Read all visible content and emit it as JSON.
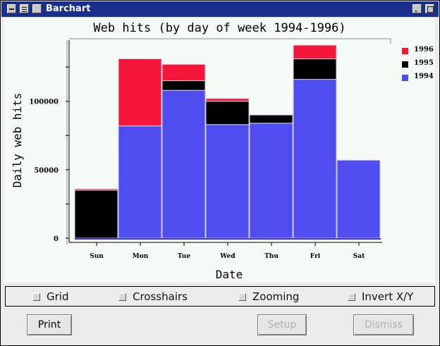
{
  "window": {
    "title": "Barchart"
  },
  "chart_data": {
    "type": "bar",
    "stacked": true,
    "title": "Web hits (by day of week 1994-1996)",
    "xlabel": "Date",
    "ylabel": "Daily web hits",
    "categories": [
      "Sun",
      "Mon",
      "Tue",
      "Wed",
      "Thu",
      "Fri",
      "Sat"
    ],
    "ylim": [
      0,
      140000
    ],
    "yticks": [
      "0",
      "50000",
      "100000"
    ],
    "ytick_values": [
      0,
      50000,
      100000
    ],
    "legend_position": "top-right",
    "series": [
      {
        "name": "1994",
        "color": "#4f4cf0",
        "values": [
          0,
          82000,
          108000,
          83000,
          84000,
          116000,
          57000
        ]
      },
      {
        "name": "1995",
        "color": "#000000",
        "values": [
          35000,
          0,
          7000,
          17000,
          6000,
          15000,
          0
        ]
      },
      {
        "name": "1996",
        "color": "#f5163a",
        "values": [
          1000,
          49000,
          12000,
          2000,
          0,
          10000,
          0
        ]
      }
    ],
    "series_1994_visible_segment_note": ""
  },
  "legend": {
    "items": [
      {
        "label": "1996",
        "color": "#f5163a"
      },
      {
        "label": "1995",
        "color": "#000000"
      },
      {
        "label": "1994",
        "color": "#4f4cf0"
      }
    ]
  },
  "options": {
    "grid": "Grid",
    "crosshairs": "Crosshairs",
    "zooming": "Zooming",
    "invert": "Invert X/Y"
  },
  "buttons": {
    "print": "Print",
    "setup": "Setup",
    "dismiss": "Dismiss"
  }
}
